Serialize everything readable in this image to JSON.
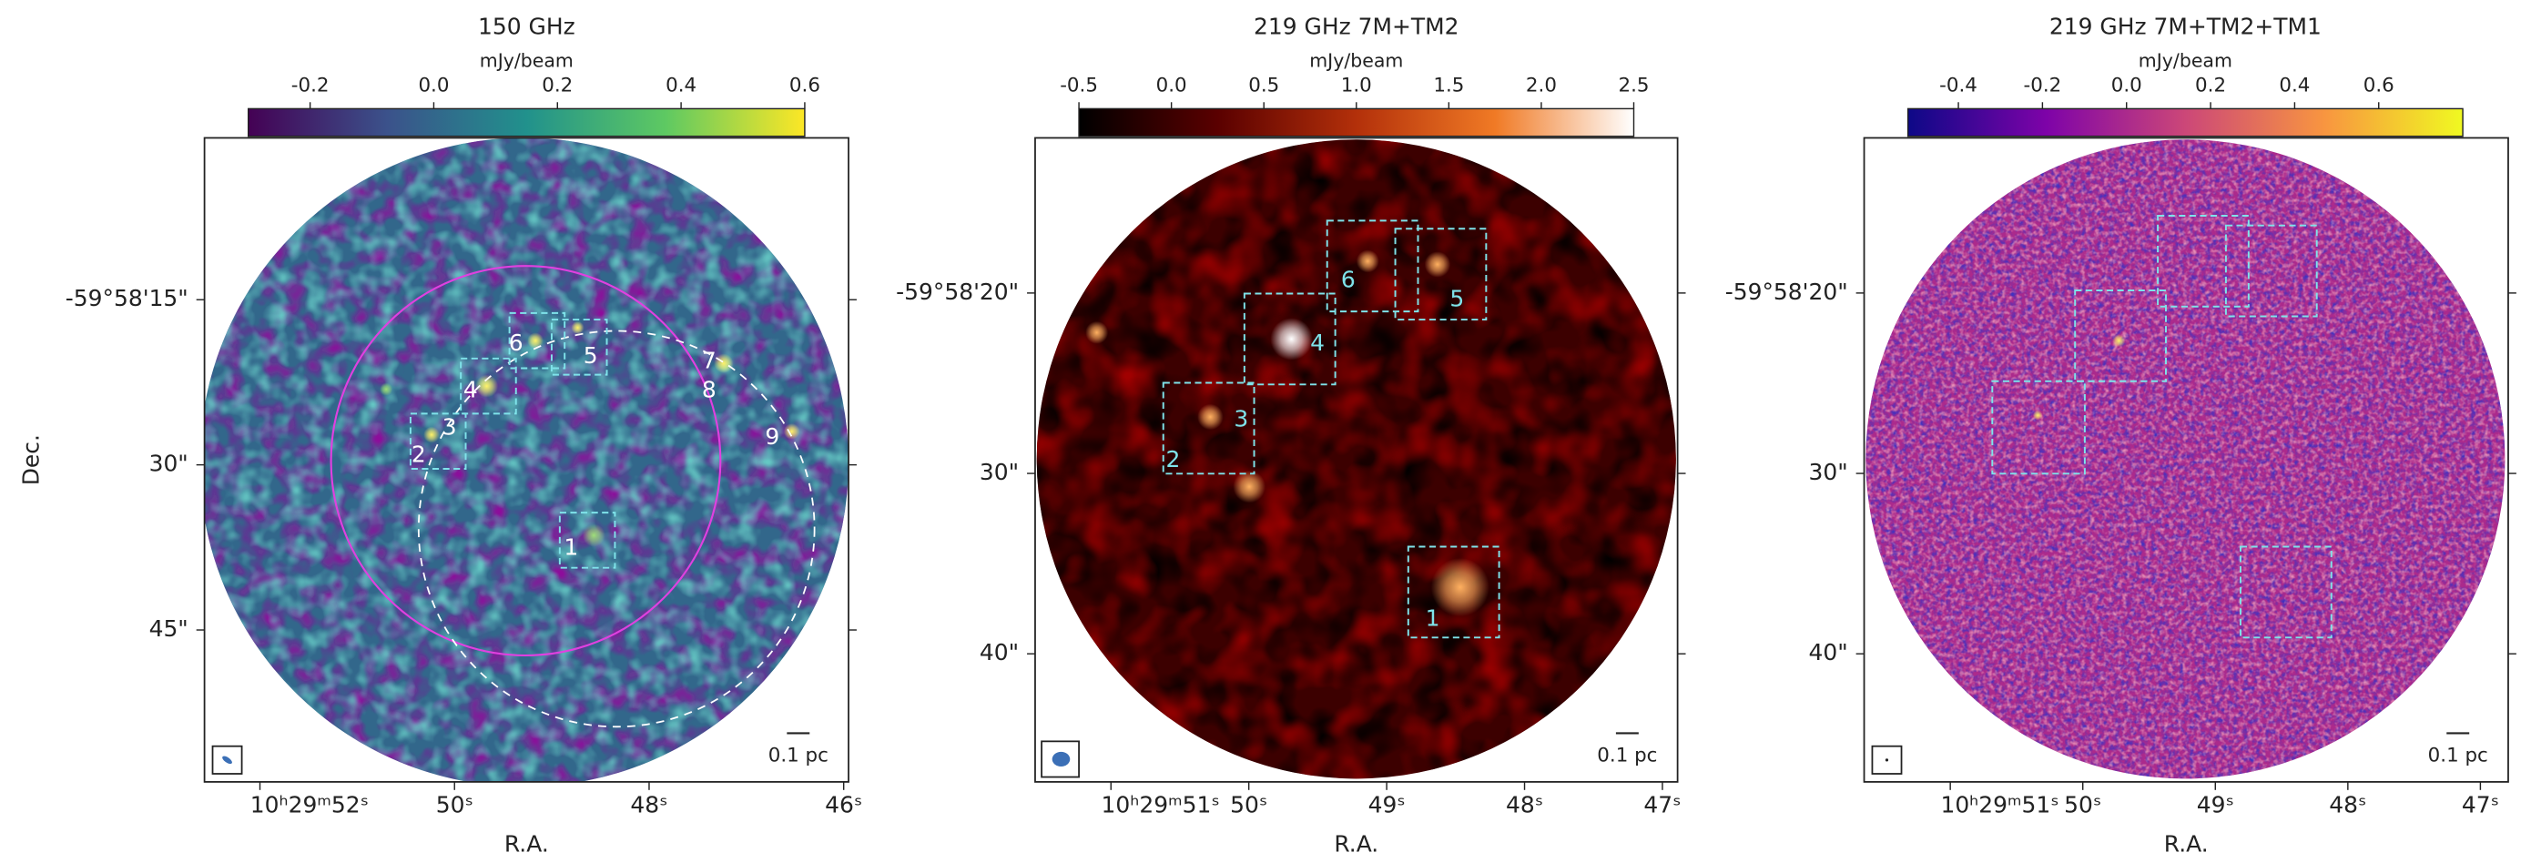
{
  "chart_data": [
    {
      "type": "image",
      "title": "150 GHz",
      "colorbar_label": "mJy/beam",
      "clim": [
        -0.3,
        0.6
      ],
      "cticks": [
        -0.2,
        {
          "value": 0.0,
          "label": "0.0"
        },
        0.2,
        0.4,
        0.6
      ],
      "colormap": [
        "#440154",
        "#3b528b",
        "#21918c",
        "#5ec962",
        "#fde725"
      ],
      "xlabel": "R.A.",
      "ylabel": "Dec.",
      "xlim": [
        52.57,
        45.95
      ],
      "xticks": [
        {
          "value": 52,
          "label": "10ʰ29ᵐ52ˢ"
        },
        {
          "value": 50,
          "label": "50ˢ"
        },
        {
          "value": 48,
          "label": "48ˢ"
        },
        {
          "value": 46,
          "label": "46ˢ"
        }
      ],
      "ylim": [
        0.3,
        58.8
      ],
      "yticks": [
        {
          "value": 15,
          "label": "-59°58'15\""
        },
        {
          "value": 30,
          "label": "30\""
        },
        {
          "value": 45,
          "label": "45\""
        }
      ],
      "annotations": [
        "1",
        "2",
        "3",
        "4",
        "5",
        "6",
        "7",
        "8",
        "9"
      ],
      "scalebar_label": "0.1 pc"
    },
    {
      "type": "image",
      "title": "219 GHz 7M+TM2",
      "colorbar_label": "mJy/beam",
      "clim": [
        -0.5,
        2.5
      ],
      "cticks": [
        -0.5,
        {
          "value": 0.0,
          "label": "0.0"
        },
        0.5,
        {
          "value": 1.0,
          "label": "1.0"
        },
        1.5,
        {
          "value": 2.0,
          "label": "2.0"
        },
        2.5
      ],
      "colormap": [
        "#000000",
        "#5a0000",
        "#b3300a",
        "#f07a25",
        "#ffffff"
      ],
      "xlabel": "R.A.",
      "xlim": [
        51.55,
        46.89
      ],
      "xticks": [
        {
          "value": 51,
          "label": "10ʰ29ᵐ51ˢ"
        },
        {
          "value": 50,
          "label": "50ˢ"
        },
        {
          "value": 49,
          "label": "49ˢ"
        },
        {
          "value": 48,
          "label": "48ˢ"
        },
        {
          "value": 47,
          "label": "47ˢ"
        }
      ],
      "ylim": [
        11.4,
        47.1
      ],
      "yticks": [
        {
          "value": 20,
          "label": "-59°58'20\""
        },
        {
          "value": 30,
          "label": "30\""
        },
        {
          "value": 40,
          "label": "40\""
        }
      ],
      "annotations": [
        "1",
        "2",
        "3",
        "4",
        "5",
        "6"
      ],
      "scalebar_label": "0.1 pc"
    },
    {
      "type": "image",
      "title": "219 GHz 7M+TM2+TM1",
      "colorbar_label": "mJy/beam",
      "clim": [
        -0.52,
        0.8
      ],
      "cticks": [
        -0.4,
        -0.2,
        {
          "value": 0.0,
          "label": "0.0"
        },
        0.2,
        0.4,
        0.6
      ],
      "colormap": [
        "#0d0887",
        "#7e03a8",
        "#cc4778",
        "#f89540",
        "#f0f921"
      ],
      "xlabel": "R.A.",
      "xlim": [
        51.65,
        46.79
      ],
      "xticks": [
        {
          "value": 51,
          "label": "10ʰ29ᵐ51ˢ"
        },
        {
          "value": 50,
          "label": "50ˢ"
        },
        {
          "value": 49,
          "label": "49ˢ"
        },
        {
          "value": 48,
          "label": "48ˢ"
        },
        {
          "value": 47,
          "label": "47ˢ"
        }
      ],
      "ylim": [
        11.4,
        47.1
      ],
      "yticks": [
        {
          "value": 20,
          "label": "-59°58'20\""
        },
        {
          "value": 30,
          "label": "30\""
        },
        {
          "value": 40,
          "label": "40\""
        }
      ],
      "scalebar_label": "0.1 pc"
    }
  ]
}
